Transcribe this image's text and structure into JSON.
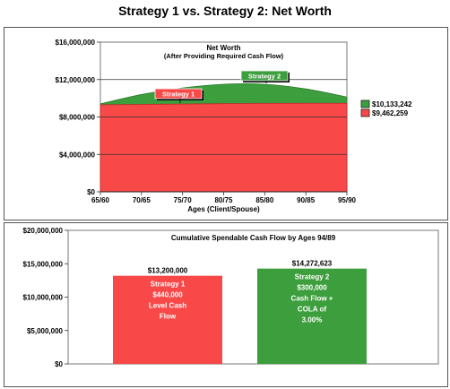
{
  "page_title": "Strategy 1 vs. Strategy 2: Net Worth",
  "colors": {
    "strategy1": "#f84848",
    "strategy2": "#3c9e3c"
  },
  "chart_data": [
    {
      "type": "area",
      "title": "Net Worth",
      "subtitle": "(After Providing Required Cash Flow)",
      "xlabel": "Ages (Client/Spouse)",
      "ylabel": "",
      "ylim": [
        0,
        16000000
      ],
      "yticks": [
        "$16,000,000",
        "$12,000,000",
        "$8,000,000",
        "$4,000,000",
        "$0"
      ],
      "ytick_values": [
        16000000,
        12000000,
        8000000,
        4000000,
        0
      ],
      "xticks": [
        "65/60",
        "70/65",
        "75/70",
        "80/75",
        "85/80",
        "90/85",
        "95/90"
      ],
      "grid": "horizontal",
      "series": [
        {
          "name": "Strategy 1",
          "values": [
            9300000,
            9340000,
            9380000,
            9420000,
            9450000,
            9460000,
            9462259
          ],
          "end_label": "$9,462,259"
        },
        {
          "name": "Strategy 2",
          "values": [
            9400000,
            10400000,
            11100000,
            11500000,
            11500000,
            11000000,
            10133242
          ],
          "end_label": "$10,133,242"
        }
      ]
    },
    {
      "type": "bar",
      "title": "Cumulative Spendable Cash Flow by Ages 94/89",
      "ylim": [
        0,
        20000000
      ],
      "yticks": [
        "$20,000,000",
        "$15,000,000",
        "$10,000,000",
        "$5,000,000",
        "$0"
      ],
      "ytick_values": [
        20000000,
        15000000,
        10000000,
        5000000,
        0
      ],
      "categories": [
        "Strategy 1",
        "Strategy 2"
      ],
      "values": [
        13200000,
        14272623
      ],
      "value_labels": [
        "$13,200,000",
        "$14,272,623"
      ],
      "descriptions": [
        [
          "Strategy 1",
          "$440,000",
          "Level Cash",
          "Flow"
        ],
        [
          "Strategy 2",
          "$300,000",
          "Cash Flow +",
          "COLA of",
          "3.00%"
        ]
      ]
    }
  ]
}
